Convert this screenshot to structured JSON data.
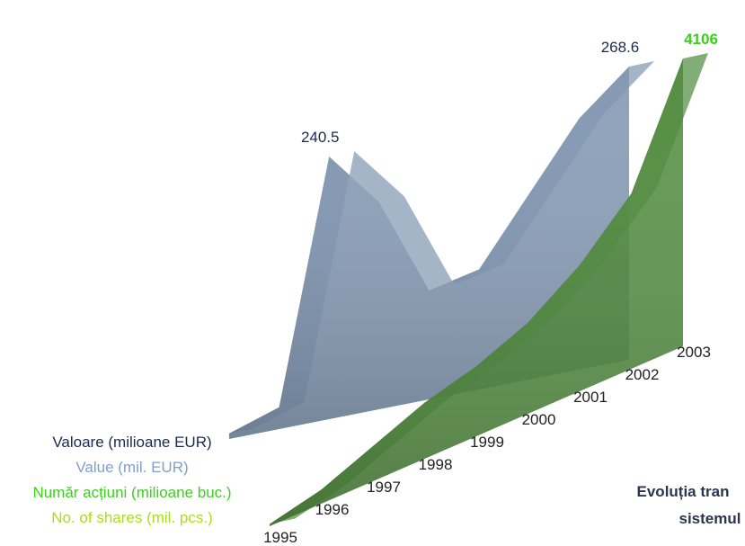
{
  "chart_data": {
    "type": "area3d",
    "categories": [
      "1995",
      "1996",
      "1997",
      "1998",
      "1999",
      "2000",
      "2001",
      "2002",
      "2003"
    ],
    "series": [
      {
        "name": "Valoare (milioane EUR)",
        "name_en": "Value (mil. EUR)",
        "color": "#7f95b0",
        "label_color": "#1a2a55",
        "label_color_en": "#7f9fd0",
        "values": [
          5,
          20,
          240.5,
          190,
          100,
          110,
          170,
          230,
          268.6
        ]
      },
      {
        "name": "Număr acțiuni (milioane buc.)",
        "name_en": "No. of shares (mil. pcs.)",
        "color": "#4f8a3c",
        "label_color": "#3ccf1e",
        "label_color_en": "#a8e01a",
        "values": [
          30,
          200,
          500,
          800,
          1000,
          1300,
          1800,
          2500,
          4106
        ]
      }
    ],
    "title": [
      "Evoluția tran",
      "sistemul"
    ]
  }
}
